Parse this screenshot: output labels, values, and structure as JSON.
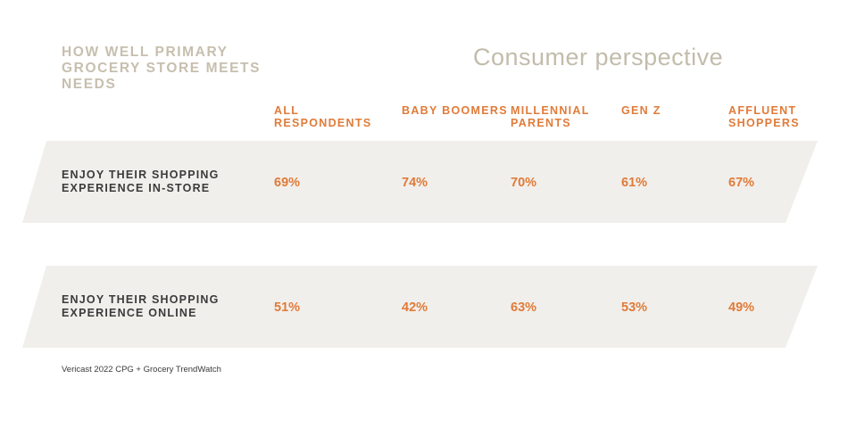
{
  "header": {
    "section_title": "HOW WELL PRIMARY GROCERY STORE MEETS NEEDS",
    "perspective_title": "Consumer perspective"
  },
  "chart_data": {
    "type": "table",
    "columns": [
      "ALL RESPONDENTS",
      "BABY BOOMERS",
      "MILLENNIAL PARENTS",
      "GEN Z",
      "AFFLUENT SHOPPERS"
    ],
    "rows": [
      {
        "label": "ENJOY THEIR SHOPPING EXPERIENCE IN-STORE",
        "values": [
          "69%",
          "74%",
          "70%",
          "61%",
          "67%"
        ]
      },
      {
        "label": "ENJOY THEIR SHOPPING EXPERIENCE ONLINE",
        "values": [
          "51%",
          "42%",
          "63%",
          "53%",
          "49%"
        ]
      }
    ]
  },
  "colors": {
    "accent": "#e07b39",
    "band": "#f1efeb",
    "muted_title": "#c7bfae",
    "text": "#3b3a3c"
  },
  "footer": {
    "source": "Vericast 2022 CPG + Grocery TrendWatch"
  }
}
